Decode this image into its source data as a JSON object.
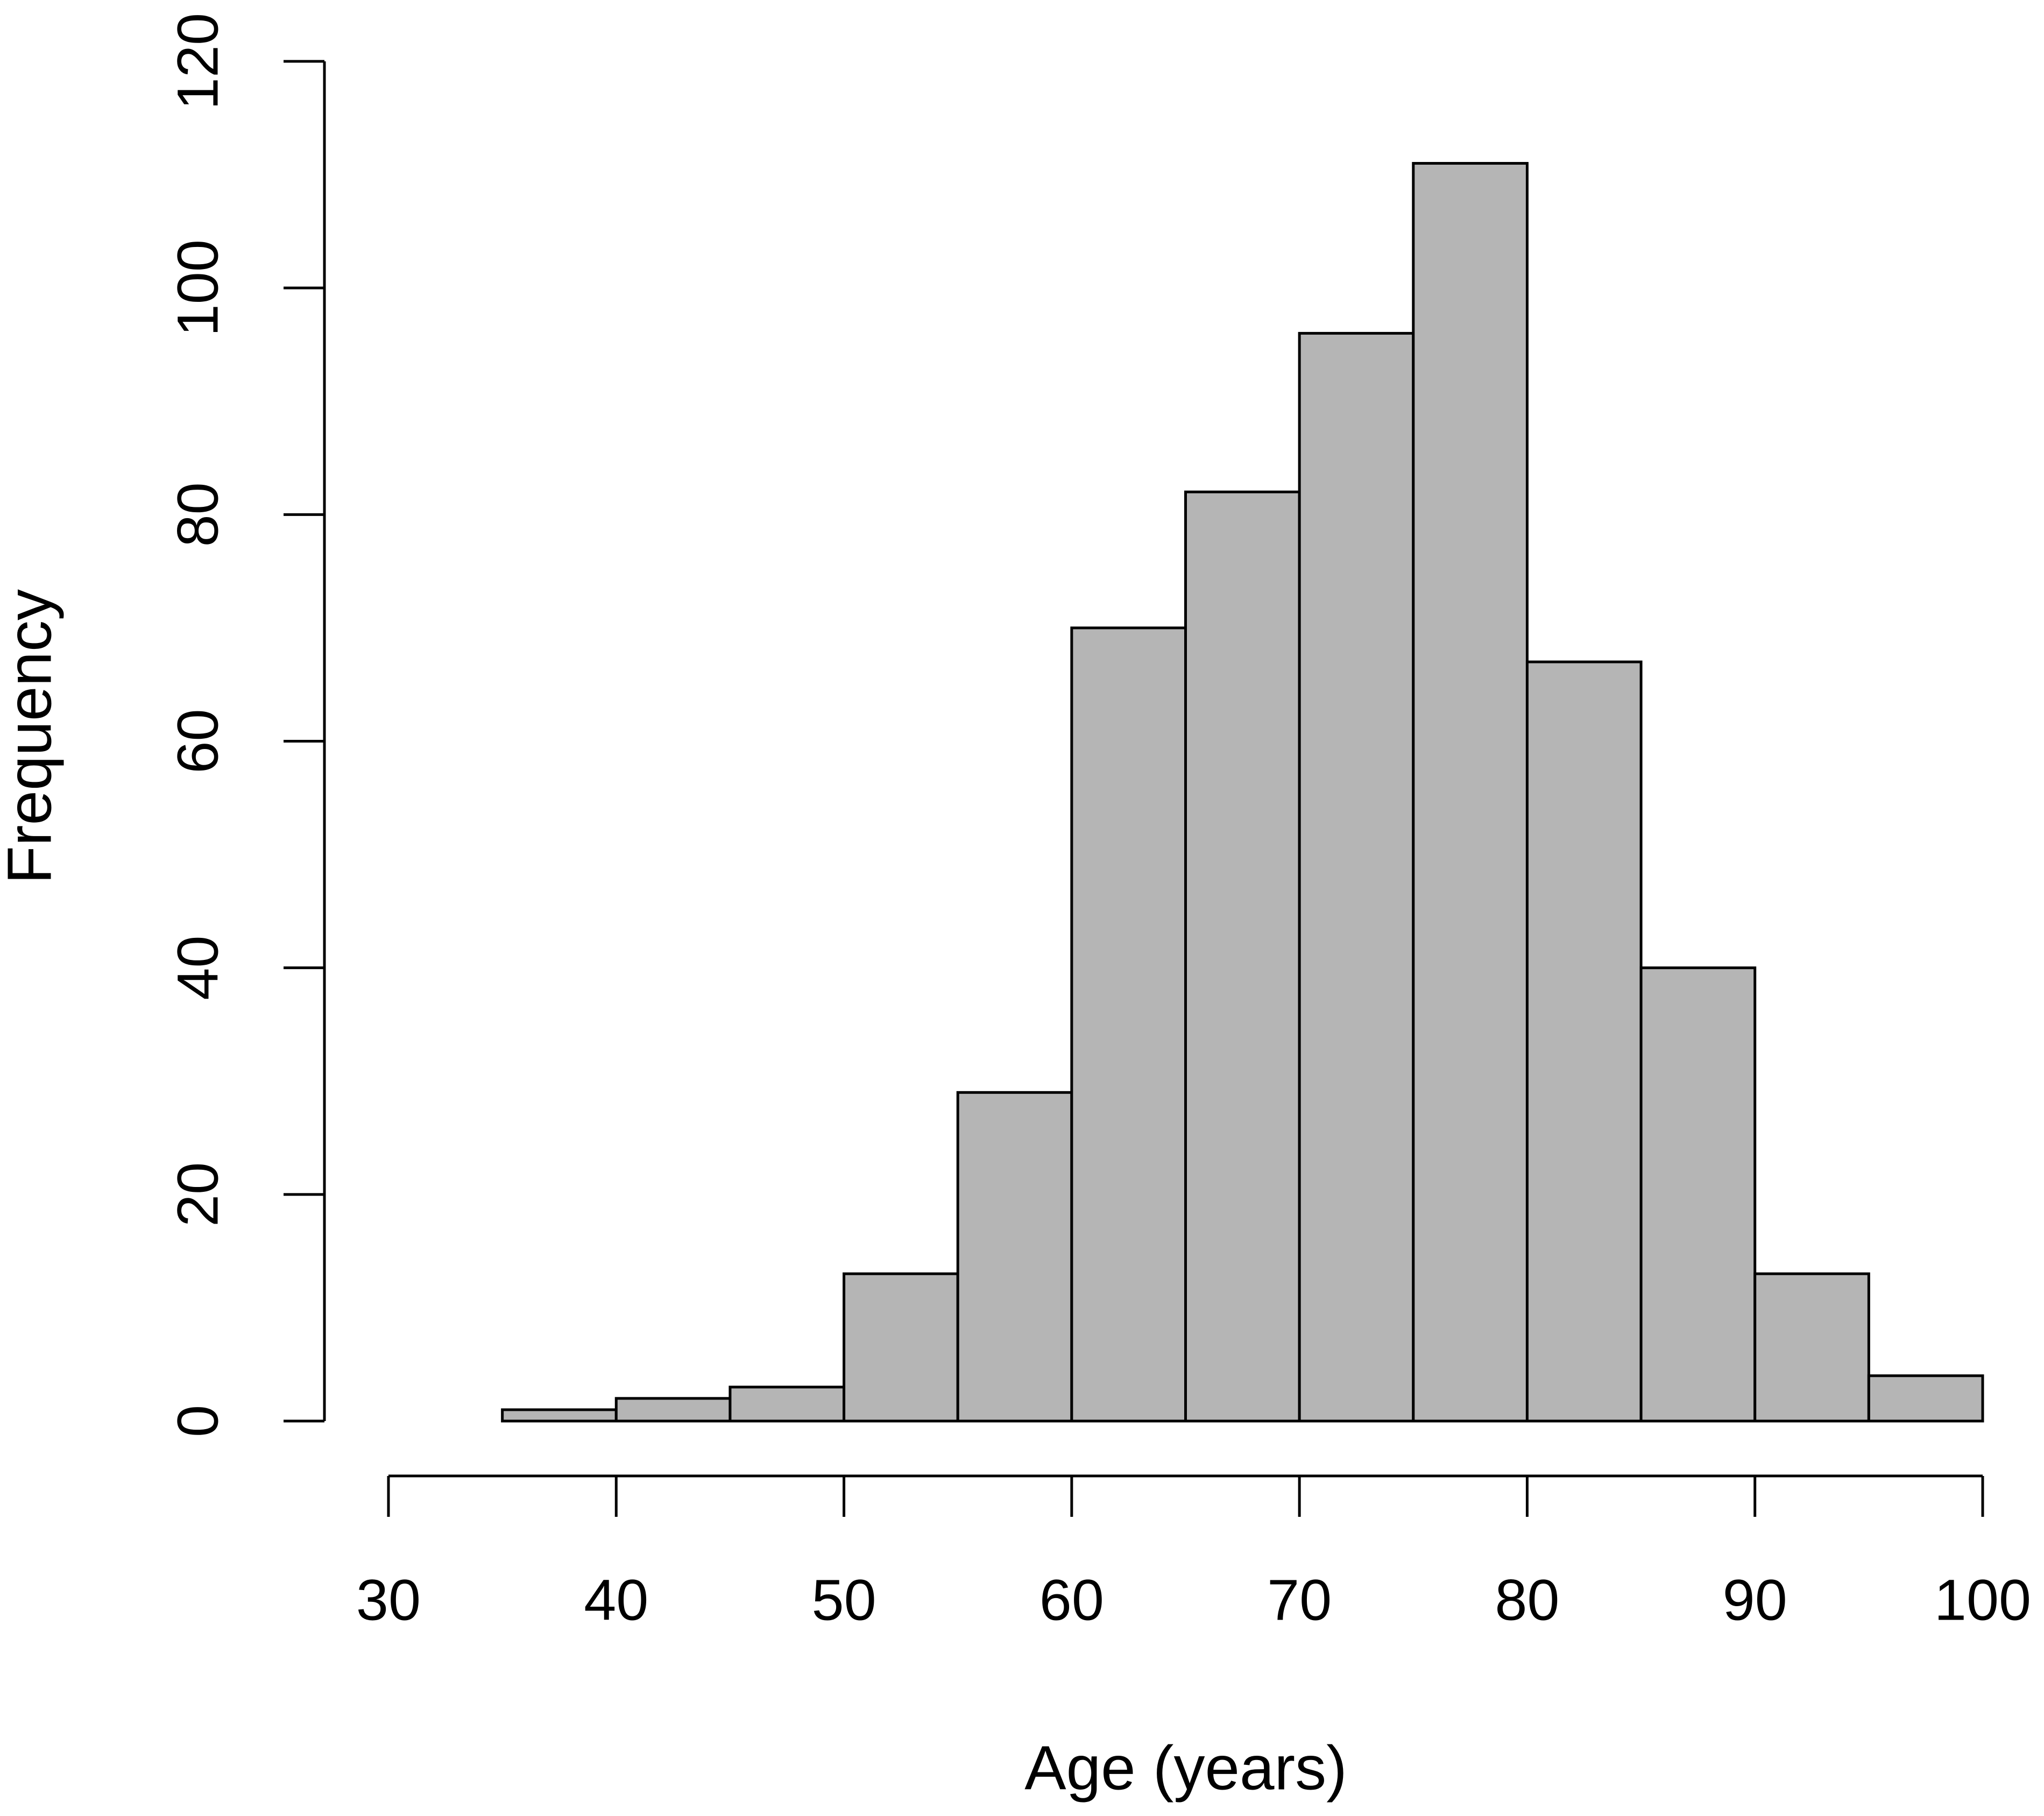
{
  "chart_data": {
    "type": "histogram",
    "x_label": "Age (years)",
    "y_label": "Frequency",
    "bins": [
      35,
      40,
      45,
      50,
      55,
      60,
      65,
      70,
      75,
      80,
      85,
      90,
      95,
      100
    ],
    "values": [
      1,
      2,
      3,
      13,
      29,
      70,
      82,
      96,
      111,
      67,
      40,
      13,
      4
    ],
    "color": "#b5b5b5",
    "xlim": [
      30,
      100
    ],
    "xticks": [
      30,
      40,
      50,
      60,
      70,
      80,
      90,
      100
    ],
    "ylim": [
      0,
      120
    ],
    "yticks": [
      0,
      20,
      40,
      60,
      80,
      100,
      120
    ],
    "grid": false
  }
}
